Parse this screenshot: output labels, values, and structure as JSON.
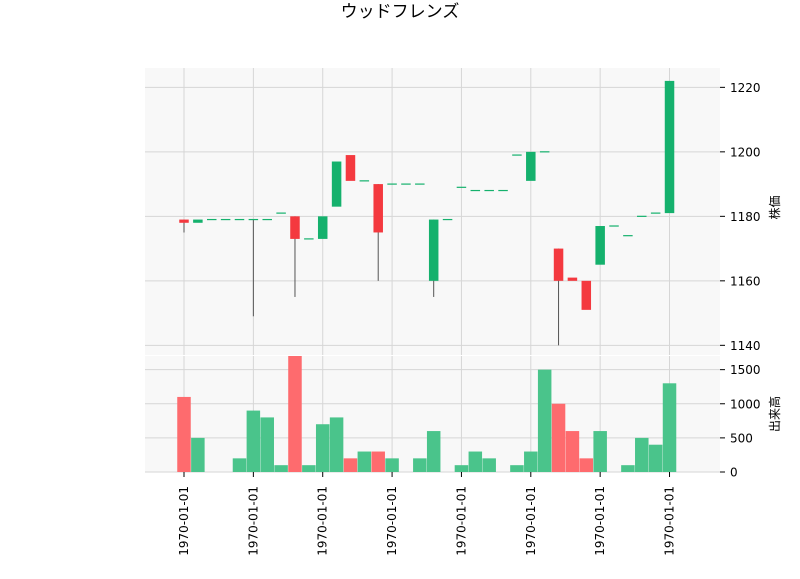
{
  "chart_data": {
    "title": "ウッドフレンズ",
    "type": "candlestick",
    "x_tick_labels": [
      "1970-01-01",
      "1970-01-01",
      "1970-01-01",
      "1970-01-01",
      "1970-01-01",
      "1970-01-01",
      "1970-01-01",
      "1970-01-01"
    ],
    "price_panel": {
      "ylabel": "株価",
      "ylim": [
        1137,
        1226
      ],
      "yticks": [
        1140,
        1160,
        1180,
        1200,
        1220
      ],
      "grid": true,
      "ohlc": [
        {
          "o": 1179,
          "h": 1179,
          "l": 1175,
          "c": 1178
        },
        {
          "o": 1178,
          "h": 1179,
          "l": 1178,
          "c": 1179
        },
        {
          "o": 1179,
          "h": 1179,
          "l": 1179,
          "c": 1179
        },
        {
          "o": 1179,
          "h": 1179,
          "l": 1179,
          "c": 1179
        },
        {
          "o": 1179,
          "h": 1179,
          "l": 1179,
          "c": 1179
        },
        {
          "o": 1179,
          "h": 1179,
          "l": 1149,
          "c": 1179
        },
        {
          "o": 1179,
          "h": 1179,
          "l": 1179,
          "c": 1179
        },
        {
          "o": 1181,
          "h": 1181,
          "l": 1181,
          "c": 1181
        },
        {
          "o": 1180,
          "h": 1180,
          "l": 1155,
          "c": 1173
        },
        {
          "o": 1173,
          "h": 1173,
          "l": 1173,
          "c": 1173
        },
        {
          "o": 1173,
          "h": 1180,
          "l": 1173,
          "c": 1180
        },
        {
          "o": 1183,
          "h": 1197,
          "l": 1183,
          "c": 1197
        },
        {
          "o": 1199,
          "h": 1199,
          "l": 1191,
          "c": 1191
        },
        {
          "o": 1191,
          "h": 1191,
          "l": 1191,
          "c": 1191
        },
        {
          "o": 1190,
          "h": 1190,
          "l": 1160,
          "c": 1175
        },
        {
          "o": 1190,
          "h": 1190,
          "l": 1190,
          "c": 1190
        },
        {
          "o": 1190,
          "h": 1190,
          "l": 1190,
          "c": 1190
        },
        {
          "o": 1190,
          "h": 1190,
          "l": 1190,
          "c": 1190
        },
        {
          "o": 1160,
          "h": 1179,
          "l": 1155,
          "c": 1179
        },
        {
          "o": 1179,
          "h": 1179,
          "l": 1179,
          "c": 1179
        },
        {
          "o": 1189,
          "h": 1189,
          "l": 1189,
          "c": 1189
        },
        {
          "o": 1188,
          "h": 1188,
          "l": 1188,
          "c": 1188
        },
        {
          "o": 1188,
          "h": 1188,
          "l": 1188,
          "c": 1188
        },
        {
          "o": 1188,
          "h": 1188,
          "l": 1188,
          "c": 1188
        },
        {
          "o": 1199,
          "h": 1199,
          "l": 1199,
          "c": 1199
        },
        {
          "o": 1191,
          "h": 1200,
          "l": 1191,
          "c": 1200
        },
        {
          "o": 1200,
          "h": 1200,
          "l": 1200,
          "c": 1200
        },
        {
          "o": 1170,
          "h": 1170,
          "l": 1140,
          "c": 1160
        },
        {
          "o": 1161,
          "h": 1161,
          "l": 1160,
          "c": 1160
        },
        {
          "o": 1160,
          "h": 1160,
          "l": 1151,
          "c": 1151
        },
        {
          "o": 1165,
          "h": 1177,
          "l": 1165,
          "c": 1177
        },
        {
          "o": 1177,
          "h": 1177,
          "l": 1177,
          "c": 1177
        },
        {
          "o": 1174,
          "h": 1174,
          "l": 1174,
          "c": 1174
        },
        {
          "o": 1180,
          "h": 1180,
          "l": 1180,
          "c": 1180
        },
        {
          "o": 1181,
          "h": 1181,
          "l": 1181,
          "c": 1181
        },
        {
          "o": 1181,
          "h": 1222,
          "l": 1181,
          "c": 1222
        }
      ]
    },
    "volume_panel": {
      "ylabel": "出来高",
      "ylim": [
        0,
        1700
      ],
      "yticks": [
        0,
        500,
        1000,
        1500
      ],
      "grid": true,
      "volumes": [
        1100,
        500,
        0,
        0,
        200,
        900,
        800,
        100,
        1700,
        100,
        700,
        800,
        200,
        300,
        300,
        200,
        0,
        200,
        600,
        0,
        100,
        300,
        200,
        0,
        100,
        300,
        1500,
        1000,
        600,
        200,
        600,
        0,
        100,
        500,
        400,
        1300
      ]
    },
    "colors": {
      "up": "#15b16d",
      "down": "#f4393f",
      "up_volume": "#4ac48b",
      "down_volume": "#fe6b6e",
      "panel_bg": "#f8f8f8",
      "grid": "#d6d6d6",
      "wick": "#555555"
    }
  }
}
